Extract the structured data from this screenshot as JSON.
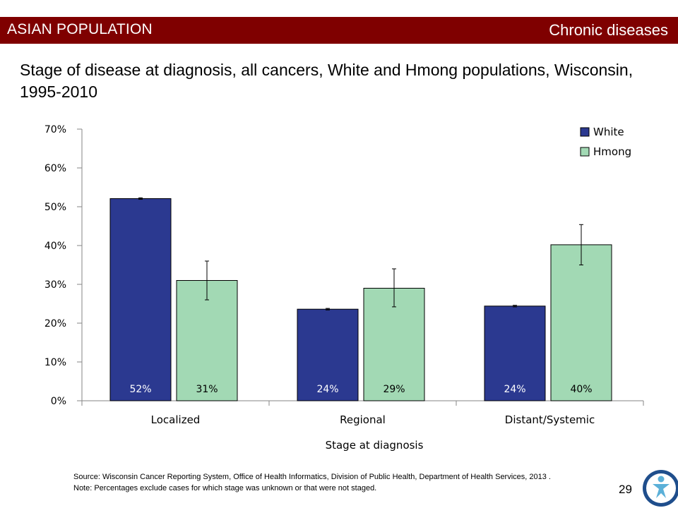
{
  "header": {
    "left_label": "ASIAN POPULATION",
    "right_label": "Chronic diseases",
    "bar_color": "#7f0000"
  },
  "slide": {
    "title": "Stage of disease at diagnosis, all cancers, White and Hmong populations, Wisconsin, 1995-2010",
    "page_number": "29"
  },
  "footer": {
    "source": "Source: Wisconsin Cancer Reporting System, Office of Health Informatics, Division of Public Health, Department of Health Services, 2013 .",
    "note": "Note: Percentages exclude cases for which stage was unknown or that were not staged."
  },
  "chart_data": {
    "type": "bar",
    "categories": [
      "Localized",
      "Regional",
      "Distant/Systemic"
    ],
    "xlabel": "Stage at diagnosis",
    "ylabel": "",
    "ylim": [
      0,
      70
    ],
    "yticks": [
      "0%",
      "10%",
      "20%",
      "30%",
      "40%",
      "50%",
      "60%",
      "70%"
    ],
    "grid": false,
    "legend_position": "top-right",
    "series": [
      {
        "name": "White",
        "color": "#2b3990",
        "values": [
          52.1,
          23.6,
          24.4
        ],
        "labels": [
          "52%",
          "24%",
          "24%"
        ],
        "error": [
          [
            51.9,
            52.3
          ],
          [
            23.4,
            23.8
          ],
          [
            24.2,
            24.6
          ]
        ]
      },
      {
        "name": "Hmong",
        "color": "#a2d9b4",
        "values": [
          31,
          29,
          40.2
        ],
        "labels": [
          "31%",
          "29%",
          "40%"
        ],
        "error": [
          [
            26,
            36
          ],
          [
            24.2,
            34
          ],
          [
            35,
            45.4
          ]
        ]
      }
    ]
  }
}
